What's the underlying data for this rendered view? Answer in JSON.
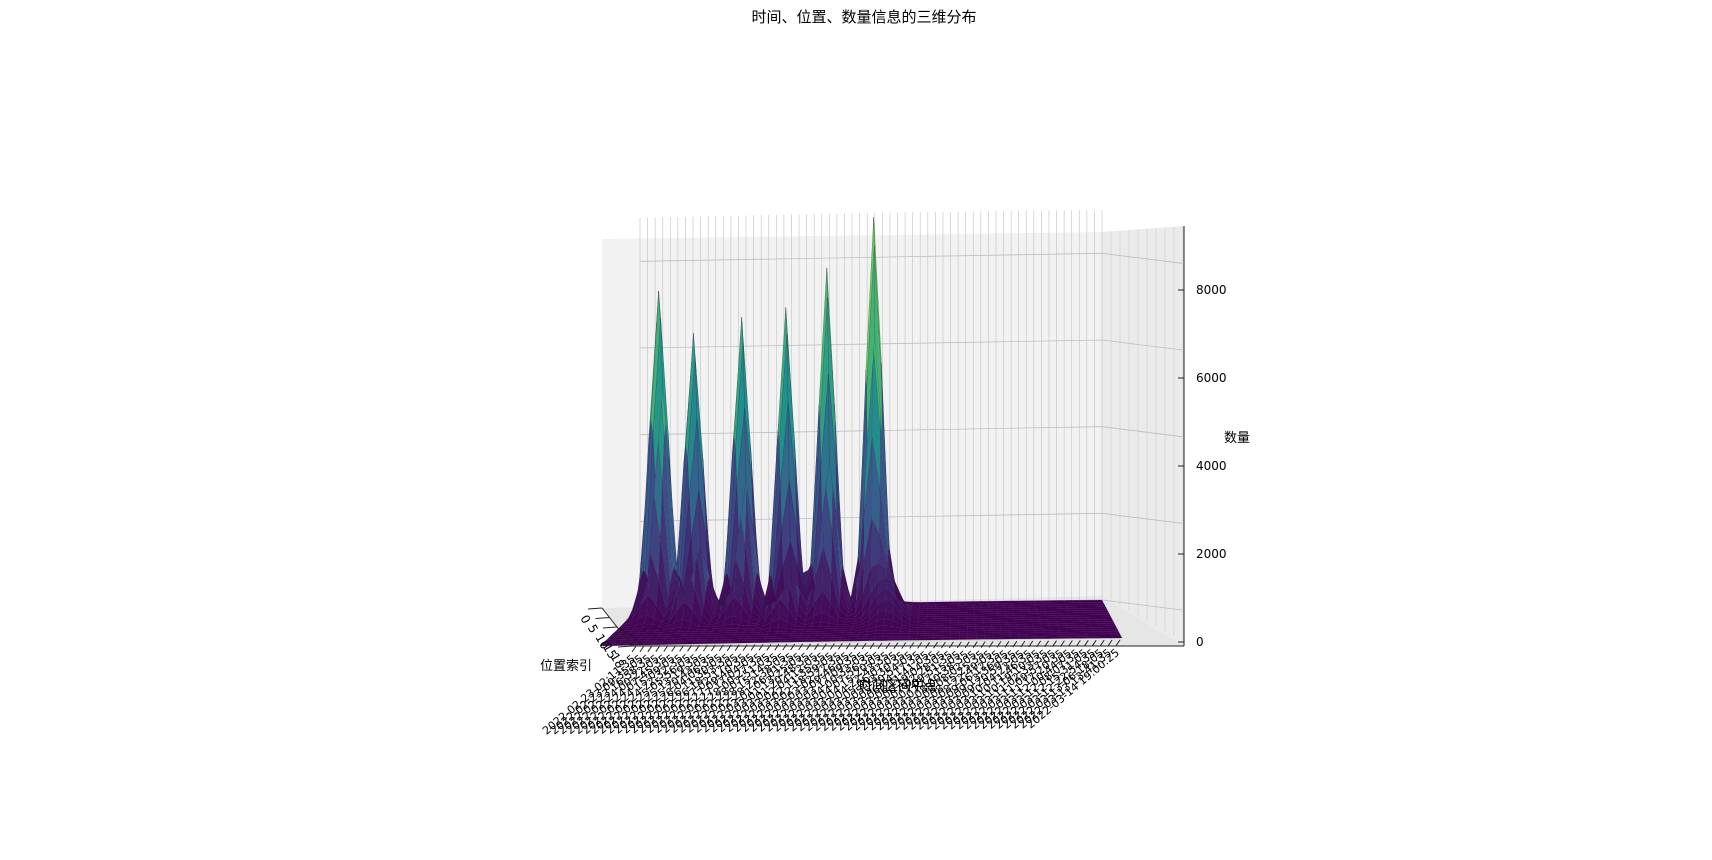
{
  "chart_data": {
    "type": "surface",
    "title": "时间、位置、数量信息的三维分布",
    "xlabel": "时间区间中点",
    "ylabel": "位置索引",
    "zlabel": "数量",
    "zlim": [
      0,
      9000
    ],
    "z_ticks": [
      0,
      2000,
      4000,
      6000,
      8000
    ],
    "y_ticks": [
      "0",
      "5",
      "10",
      "15",
      "18"
    ],
    "colormap": "viridis",
    "grid": true,
    "x_tick_labels": [
      "2022-02-23 02:11:35",
      "2022-02-23 09:35:05",
      "2022-02-23 16:58:35",
      "2022-02-24 00:22:05",
      "2022-02-24 07:45:35",
      "2022-02-24 15:09:05",
      "2022-02-24 22:32:35",
      "2022-02-25 05:56:05",
      "2022-02-25 13:19:35",
      "2022-02-25 20:43:05",
      "2022-02-26 04:06:35",
      "2022-02-26 11:30:05",
      "2022-02-26 18:53:35",
      "2022-02-27 02:17:05",
      "2022-02-27 09:40:35",
      "2022-02-27 17:04:05",
      "2022-02-28 00:27:35",
      "2022-02-28 07:51:05",
      "2022-02-28 15:14:35",
      "2022-02-28 22:38:05",
      "2022-03-01 06:01:35",
      "2022-03-01 13:25:05",
      "2022-03-01 20:48:35",
      "2022-03-02 04:12:05",
      "2022-03-02 11:35:35",
      "2022-03-02 18:59:05",
      "2022-03-03 02:22:35",
      "2022-03-03 09:46:05",
      "2022-03-03 17:09:35",
      "2022-03-04 00:33:05",
      "2022-03-04 07:56:35",
      "2022-03-04 15:20:05",
      "2022-03-04 22:43:35",
      "2022-03-05 06:07:05",
      "2022-03-05 13:30:35",
      "2022-03-05 20:54:05",
      "2022-03-06 04:17:35",
      "2022-03-06 11:41:05",
      "2022-03-06 19:04:35",
      "2022-03-07 02:28:05",
      "2022-03-07 09:51:35",
      "2022-03-07 17:15:05",
      "2022-03-08 00:38:35",
      "2022-03-08 08:02:05",
      "2022-03-08 15:25:35",
      "2022-03-08 22:49:05",
      "2022-03-09 06:12:35",
      "2022-03-09 13:36:05",
      "2022-03-09 20:59:35",
      "2022-03-10 04:23:05",
      "2022-03-10 11:46:35",
      "2022-03-10 19:10:05",
      "2022-03-11 02:33:35",
      "2022-03-11 09:57:05",
      "2022-03-11 17:20:35",
      "2022-03-12 00:44:05",
      "2022-03-12 08:07:35",
      "2022-03-12 15:31:05",
      "2022-03-12 22:54:35",
      "2022-03-13 06:18:05",
      "2022-03-13 13:41:35",
      "2022-03-14 19:00:25"
    ],
    "peaks": [
      {
        "x_index": 3,
        "y_index": 2,
        "z": 7400
      },
      {
        "x_index": 8,
        "y_index": 4,
        "z": 6500
      },
      {
        "x_index": 14,
        "y_index": 3,
        "z": 6800
      },
      {
        "x_index": 20,
        "y_index": 5,
        "z": 7100
      },
      {
        "x_index": 25,
        "y_index": 3,
        "z": 7900
      },
      {
        "x_index": 31,
        "y_index": 2,
        "z": 9100
      }
    ],
    "flat_region_after_x_index": 37,
    "flat_value": 0
  }
}
